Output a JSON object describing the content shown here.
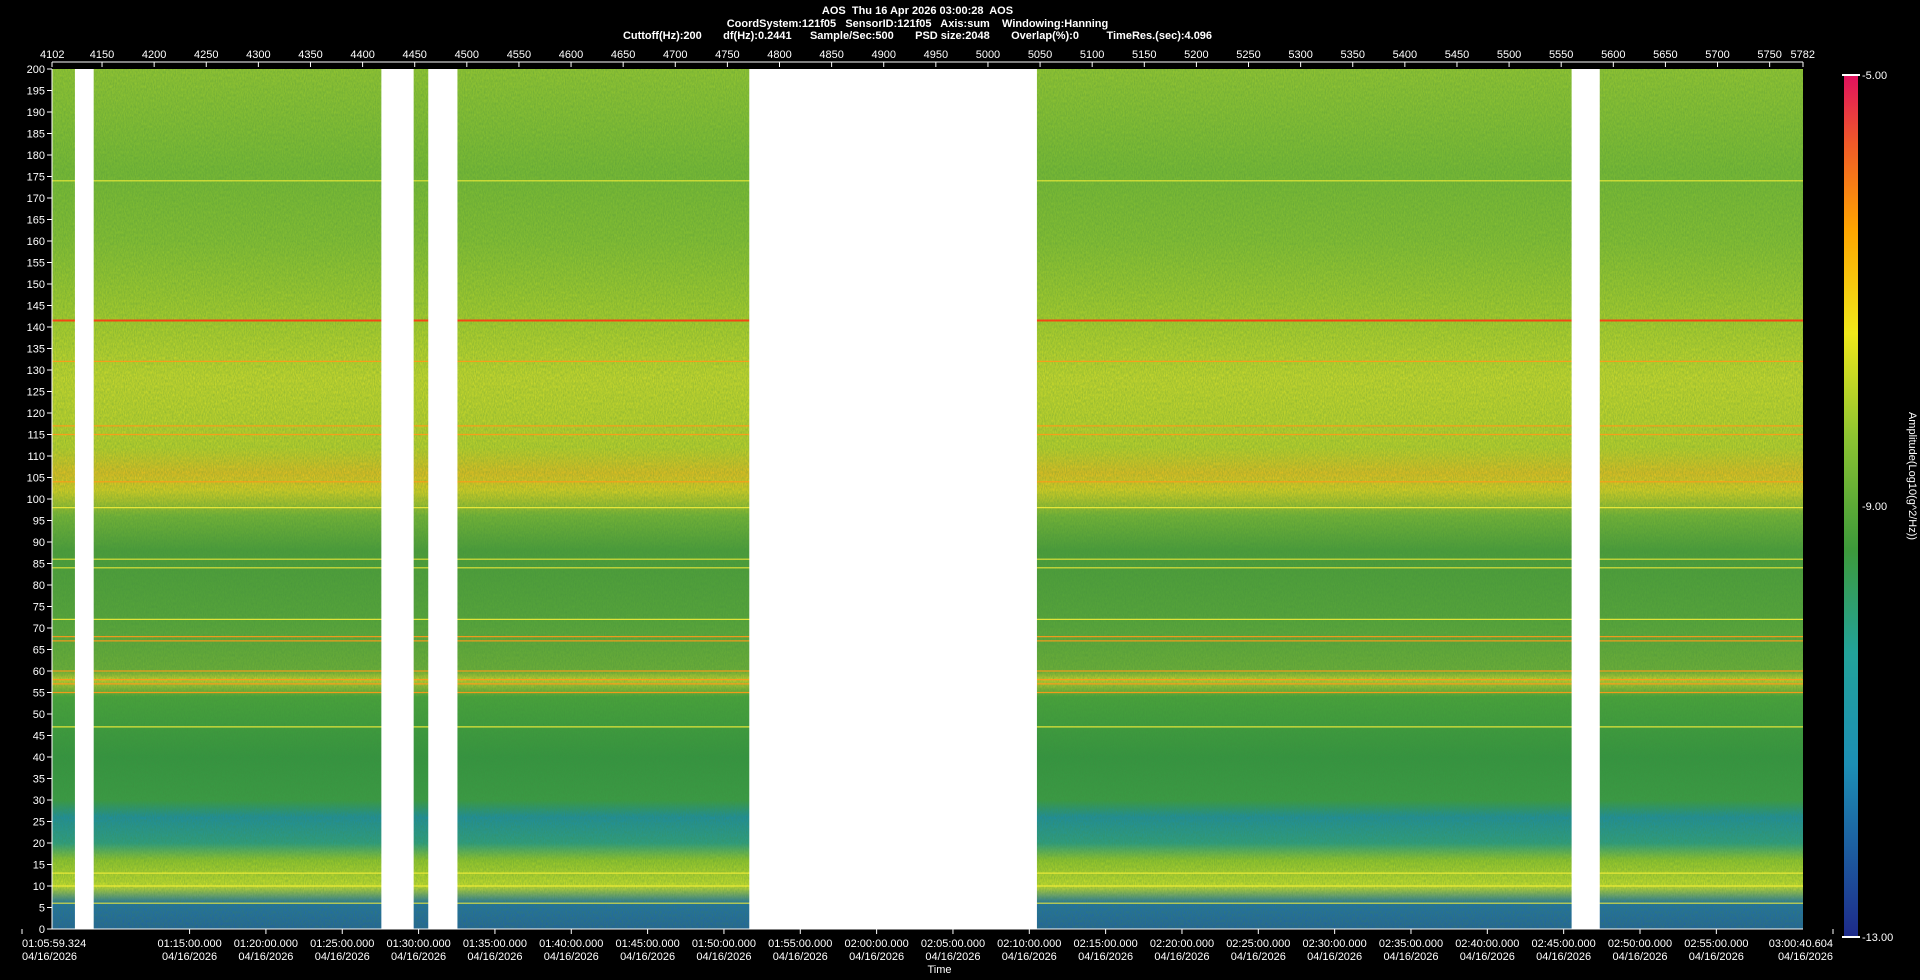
{
  "header": {
    "line1": "AOS  Thu 16 Apr 2026 03:00:28  AOS",
    "line2": "CoordSystem:121f05   SensorID:121f05   Axis:sum    Windowing:Hanning",
    "line3": "Cuttoff(Hz):200       df(Hz):0.2441      Sample/Sec:500       PSD size:2048       Overlap(%):0         TimeRes.(sec):4.096"
  },
  "colors": {
    "low": "#1d3f8a",
    "mid_low": "#22a39a",
    "mid": "#3d9a3a",
    "mid_high": "#b8d21f",
    "high": "#f0e81a",
    "upper": "#ffa500",
    "top": "#e0115f",
    "gap": "#ffffff",
    "background": "#000000"
  },
  "chart_data": {
    "type": "heatmap",
    "title": "",
    "xlabel": "Time",
    "ylabel": "",
    "ylim": [
      0,
      200
    ],
    "yticks": [
      0,
      5,
      10,
      15,
      20,
      25,
      30,
      35,
      40,
      45,
      50,
      55,
      60,
      65,
      70,
      75,
      80,
      85,
      90,
      95,
      100,
      105,
      110,
      115,
      120,
      125,
      130,
      135,
      140,
      145,
      150,
      155,
      160,
      165,
      170,
      175,
      180,
      185,
      190,
      195,
      200
    ],
    "top_axis": {
      "range": [
        4102,
        5782
      ],
      "ticks": [
        "4102",
        "4150",
        "4200",
        "4250",
        "4300",
        "4350",
        "4400",
        "4450",
        "4500",
        "4550",
        "4600",
        "4650",
        "4700",
        "4750",
        "4800",
        "4850",
        "4900",
        "4950",
        "5000",
        "5050",
        "5100",
        "5150",
        "5200",
        "5250",
        "5300",
        "5350",
        "5400",
        "5450",
        "5500",
        "5550",
        "5600",
        "5650",
        "5700",
        "5750",
        "5782"
      ]
    },
    "bottom_axis": {
      "start_label": "01:05:59.324",
      "end_label": "03:00:40.604",
      "date": "04/16/2026",
      "ticks": [
        "01:15:00.000",
        "01:20:00.000",
        "01:25:00.000",
        "01:30:00.000",
        "01:35:00.000",
        "01:40:00.000",
        "01:45:00.000",
        "01:50:00.000",
        "01:55:00.000",
        "02:00:00.000",
        "02:05:00.000",
        "02:10:00.000",
        "02:15:00.000",
        "02:20:00.000",
        "02:25:00.000",
        "02:30:00.000",
        "02:35:00.000",
        "02:40:00.000",
        "02:45:00.000",
        "02:50:00.000",
        "02:55:00.000"
      ]
    },
    "data_gaps": [
      [
        4124,
        4142
      ],
      [
        4418,
        4449
      ],
      [
        4463,
        4491
      ],
      [
        4771,
        5047
      ],
      [
        5560,
        5587
      ]
    ],
    "tones_hz": [
      {
        "f": 174,
        "level": "high"
      },
      {
        "f": 141.5,
        "level": "top"
      },
      {
        "f": 132,
        "level": "upper"
      },
      {
        "f": 117,
        "level": "upper"
      },
      {
        "f": 115,
        "level": "upper"
      },
      {
        "f": 104,
        "level": "upper"
      },
      {
        "f": 98,
        "level": "high"
      },
      {
        "f": 86,
        "level": "high"
      },
      {
        "f": 84,
        "level": "high"
      },
      {
        "f": 72,
        "level": "high"
      },
      {
        "f": 68,
        "level": "upper"
      },
      {
        "f": 67,
        "level": "upper"
      },
      {
        "f": 60,
        "level": "upper"
      },
      {
        "f": 58,
        "level": "upper"
      },
      {
        "f": 57,
        "level": "upper"
      },
      {
        "f": 55,
        "level": "upper"
      },
      {
        "f": 47,
        "level": "high"
      },
      {
        "f": 13,
        "level": "high"
      },
      {
        "f": 10,
        "level": "high"
      },
      {
        "f": 6,
        "level": "high"
      }
    ],
    "colorbar": {
      "label": "Amplitude(Log10(g^2/Hz))",
      "max_label": "-5.00",
      "mid_label": "-9.00",
      "min_label": "-13.00",
      "range": [
        -13,
        -5
      ]
    }
  }
}
